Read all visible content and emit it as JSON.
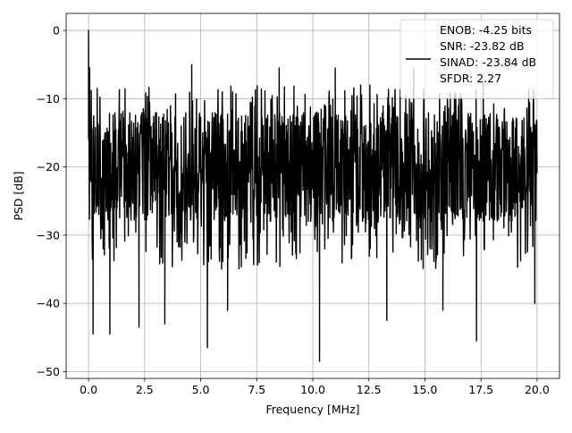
{
  "chart_data": {
    "type": "line",
    "title": "",
    "xlabel": "Frequency [MHz]",
    "ylabel": "PSD [dB]",
    "xlim": [
      -1.0,
      21.0
    ],
    "ylim": [
      -51.0,
      2.5
    ],
    "xticks": [
      0.0,
      2.5,
      5.0,
      7.5,
      10.0,
      12.5,
      15.0,
      17.5,
      20.0
    ],
    "xtick_labels": [
      "0.0",
      "2.5",
      "5.0",
      "7.5",
      "10.0",
      "12.5",
      "15.0",
      "17.5",
      "20.0"
    ],
    "yticks": [
      0,
      -10,
      -20,
      -30,
      -40,
      -50
    ],
    "ytick_labels": [
      "0",
      "−10",
      "−20",
      "−30",
      "−40",
      "−50"
    ],
    "grid": true,
    "legend_position": "top-right",
    "series": [
      {
        "name": "ENOB: -4.25 bits\nSNR: -23.82 dB\nSINAD: -23.84 dB\nSFDR: 2.27",
        "color": "#000000",
        "x_range_mhz": [
          0.0,
          20.0
        ],
        "peak": {
          "x": 0.0,
          "y": 0.0
        },
        "typical_envelope_db": [
          -35,
          -7
        ],
        "notable_minima": [
          {
            "x": 0.2,
            "y": -44.5
          },
          {
            "x": 0.95,
            "y": -44.5
          },
          {
            "x": 2.25,
            "y": -43.5
          },
          {
            "x": 3.4,
            "y": -43.0
          },
          {
            "x": 5.3,
            "y": -46.5
          },
          {
            "x": 6.2,
            "y": -41.0
          },
          {
            "x": 10.3,
            "y": -48.5
          },
          {
            "x": 13.3,
            "y": -42.5
          },
          {
            "x": 15.8,
            "y": -41.0
          },
          {
            "x": 17.3,
            "y": -45.5
          },
          {
            "x": 19.9,
            "y": -40.0
          }
        ],
        "notable_maxima": [
          {
            "x": 0.05,
            "y": -5.5
          },
          {
            "x": 4.6,
            "y": -5.0
          },
          {
            "x": 8.5,
            "y": -5.5
          },
          {
            "x": 11.0,
            "y": -5.5
          },
          {
            "x": 14.5,
            "y": -5.5
          },
          {
            "x": 17.6,
            "y": -7.5
          }
        ]
      }
    ]
  }
}
